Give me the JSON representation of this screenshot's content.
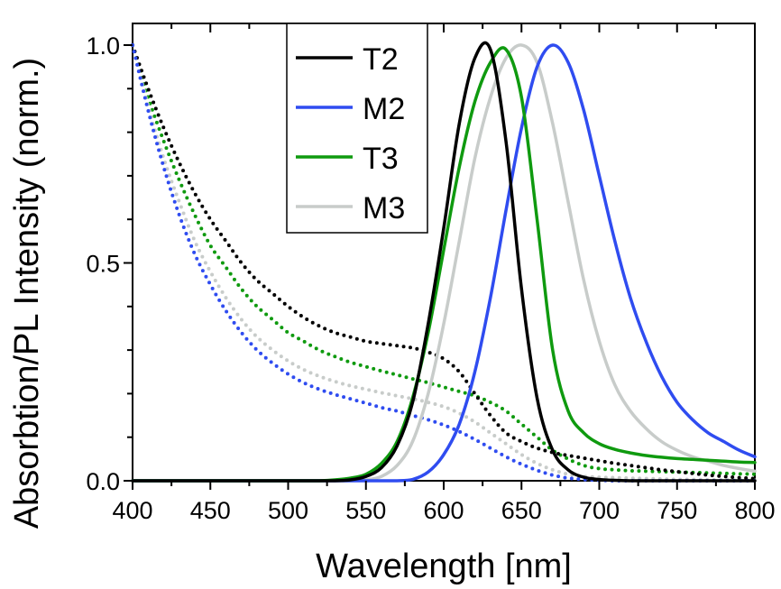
{
  "chart_data": {
    "type": "line",
    "title": "",
    "xlabel": "Wavelength [nm]",
    "ylabel": "Absorbtion/PL Intensity (norm.)",
    "xlim": [
      400,
      800
    ],
    "ylim": [
      0,
      1.0
    ],
    "x_major_ticks": [
      400,
      450,
      500,
      550,
      600,
      650,
      700,
      750,
      800
    ],
    "x_tick_labels": [
      "400",
      "450",
      "500",
      "550",
      "600",
      "650",
      "700",
      "750",
      "800"
    ],
    "y_major_ticks": [
      0.0,
      0.5,
      1.0
    ],
    "y_tick_labels": [
      "0.0",
      "0.5",
      "1.0"
    ],
    "grid": false,
    "legend_position": "top-center",
    "legend": [
      {
        "name": "T2",
        "color": "#000000"
      },
      {
        "name": "M2",
        "color": "#2f4cf0"
      },
      {
        "name": "T3",
        "color": "#0f9a0f"
      },
      {
        "name": "M3",
        "color": "#c8ccca"
      }
    ],
    "x": [
      400,
      410,
      420,
      430,
      440,
      450,
      460,
      470,
      480,
      490,
      500,
      510,
      520,
      530,
      540,
      550,
      560,
      570,
      580,
      590,
      600,
      610,
      620,
      630,
      640,
      650,
      660,
      670,
      680,
      690,
      700,
      710,
      720,
      730,
      740,
      750,
      760,
      770,
      780,
      790,
      800
    ],
    "series": [
      {
        "name": "T2 absorption",
        "style": "dotted",
        "color": "#000000",
        "values": [
          1.0,
          0.9,
          0.81,
          0.73,
          0.66,
          0.6,
          0.55,
          0.5,
          0.46,
          0.43,
          0.4,
          0.375,
          0.355,
          0.34,
          0.33,
          0.32,
          0.315,
          0.31,
          0.305,
          0.295,
          0.28,
          0.25,
          0.2,
          0.15,
          0.11,
          0.09,
          0.075,
          0.065,
          0.058,
          0.052,
          0.046,
          0.04,
          0.035,
          0.03,
          0.025,
          0.021,
          0.017,
          0.013,
          0.01,
          0.007,
          0.005
        ]
      },
      {
        "name": "M2 absorption",
        "style": "dotted",
        "color": "#2f4cf0",
        "values": [
          1.0,
          0.85,
          0.72,
          0.61,
          0.52,
          0.45,
          0.39,
          0.34,
          0.3,
          0.27,
          0.245,
          0.225,
          0.21,
          0.198,
          0.188,
          0.178,
          0.168,
          0.16,
          0.15,
          0.14,
          0.128,
          0.113,
          0.095,
          0.075,
          0.055,
          0.038,
          0.024,
          0.013,
          0.006,
          0.003,
          0.001,
          0,
          0,
          0,
          0,
          0,
          0,
          0,
          0,
          0,
          0
        ]
      },
      {
        "name": "T3 absorption",
        "style": "dotted",
        "color": "#0f9a0f",
        "values": [
          1.0,
          0.88,
          0.78,
          0.69,
          0.61,
          0.54,
          0.49,
          0.44,
          0.4,
          0.37,
          0.34,
          0.32,
          0.3,
          0.285,
          0.272,
          0.262,
          0.252,
          0.243,
          0.234,
          0.225,
          0.215,
          0.205,
          0.195,
          0.18,
          0.16,
          0.13,
          0.1,
          0.07,
          0.05,
          0.035,
          0.028,
          0.025,
          0.023,
          0.022,
          0.021,
          0.02,
          0.019,
          0.018,
          0.017,
          0.016,
          0.015
        ]
      },
      {
        "name": "M3 absorption",
        "style": "dotted",
        "color": "#c8ccca",
        "values": [
          1.0,
          0.86,
          0.74,
          0.64,
          0.55,
          0.48,
          0.42,
          0.37,
          0.33,
          0.3,
          0.275,
          0.255,
          0.24,
          0.228,
          0.218,
          0.21,
          0.202,
          0.195,
          0.188,
          0.18,
          0.17,
          0.155,
          0.135,
          0.11,
          0.085,
          0.06,
          0.04,
          0.025,
          0.015,
          0.01,
          0.008,
          0.007,
          0.006,
          0.005,
          0.004,
          0.003,
          0.003,
          0.002,
          0.002,
          0.001,
          0.001
        ]
      },
      {
        "name": "T2",
        "style": "solid",
        "color": "#000000",
        "values": [
          0,
          0,
          0,
          0,
          0,
          0,
          0,
          0,
          0,
          0,
          0,
          0,
          0,
          0,
          0.002,
          0.01,
          0.03,
          0.08,
          0.18,
          0.36,
          0.58,
          0.82,
          0.97,
          0.99,
          0.78,
          0.44,
          0.19,
          0.07,
          0.025,
          0.008,
          0.003,
          0.001,
          0,
          0,
          0,
          0,
          0,
          0,
          0,
          0,
          0
        ]
      },
      {
        "name": "M2",
        "style": "solid",
        "color": "#2f4cf0",
        "values": [
          0,
          0,
          0,
          0,
          0,
          0,
          0,
          0,
          0,
          0,
          0,
          0,
          0,
          0,
          0,
          0,
          0,
          0,
          0.003,
          0.02,
          0.06,
          0.13,
          0.25,
          0.42,
          0.62,
          0.81,
          0.95,
          1.0,
          0.96,
          0.85,
          0.7,
          0.55,
          0.42,
          0.32,
          0.24,
          0.18,
          0.14,
          0.11,
          0.09,
          0.07,
          0.055
        ]
      },
      {
        "name": "T3",
        "style": "solid",
        "color": "#0f9a0f",
        "values": [
          0,
          0,
          0,
          0,
          0,
          0,
          0,
          0,
          0,
          0,
          0,
          0,
          0,
          0.002,
          0.006,
          0.015,
          0.04,
          0.09,
          0.19,
          0.34,
          0.53,
          0.72,
          0.87,
          0.96,
          0.99,
          0.88,
          0.6,
          0.3,
          0.16,
          0.11,
          0.085,
          0.072,
          0.064,
          0.058,
          0.054,
          0.051,
          0.049,
          0.047,
          0.045,
          0.043,
          0.042
        ]
      },
      {
        "name": "M3",
        "style": "solid",
        "color": "#c8ccca",
        "values": [
          0,
          0,
          0,
          0,
          0,
          0,
          0,
          0,
          0,
          0,
          0,
          0,
          0,
          0,
          0,
          0.002,
          0.01,
          0.035,
          0.09,
          0.2,
          0.36,
          0.55,
          0.74,
          0.88,
          0.97,
          1.0,
          0.96,
          0.82,
          0.64,
          0.46,
          0.32,
          0.22,
          0.16,
          0.12,
          0.09,
          0.07,
          0.055,
          0.045,
          0.035,
          0.028,
          0.022
        ]
      }
    ]
  }
}
